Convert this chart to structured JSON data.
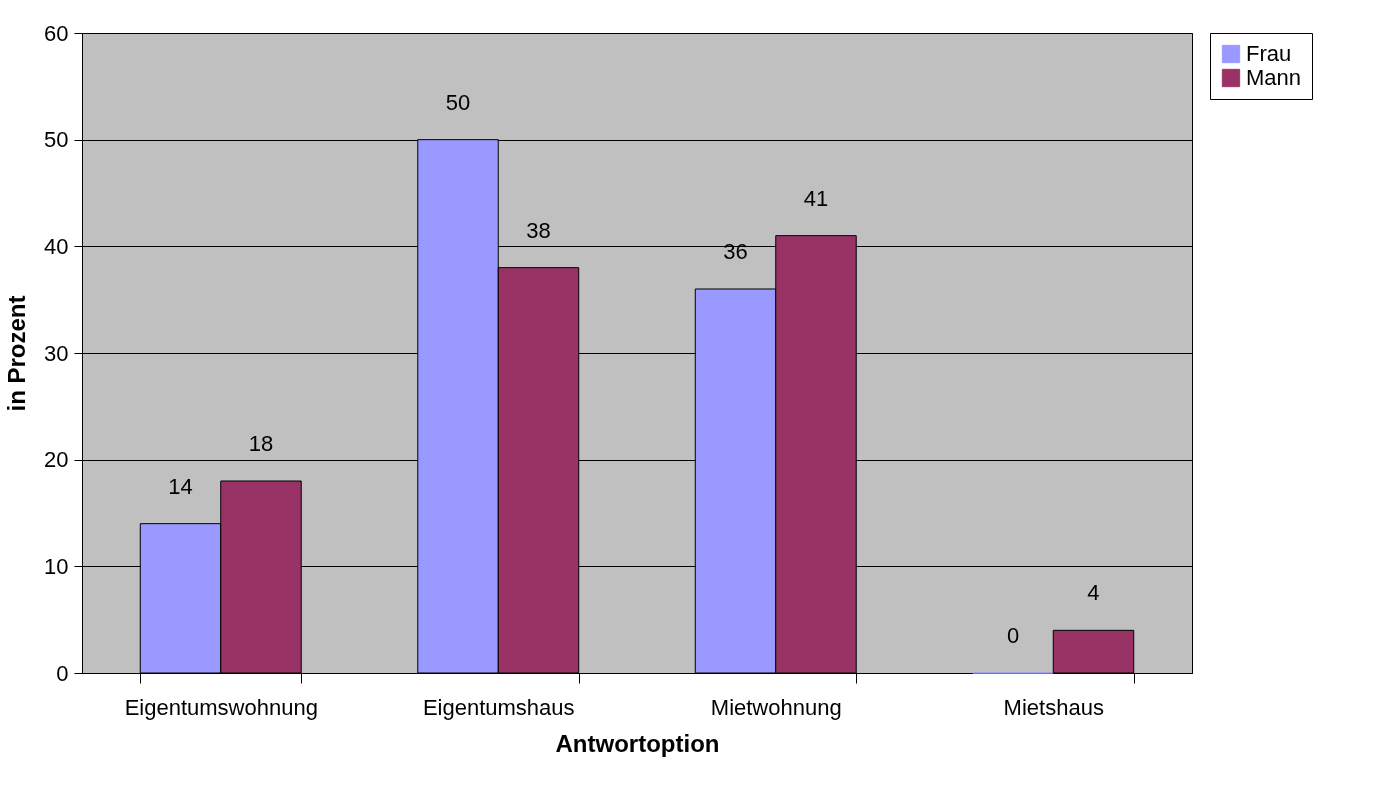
{
  "chart_data": {
    "type": "bar",
    "xlabel": "Antwortoption",
    "ylabel": "in Prozent",
    "categories": [
      "Eigentumswohnung",
      "Eigentumshaus",
      "Mietwohnung",
      "Mietshaus"
    ],
    "series": [
      {
        "name": "Frau",
        "color": "#9999ff",
        "values": [
          14,
          50,
          36,
          0
        ]
      },
      {
        "name": "Mann",
        "color": "#993366",
        "values": [
          18,
          38,
          41,
          4
        ]
      }
    ],
    "ylim": [
      0,
      60
    ],
    "yticks": [
      0,
      10,
      20,
      30,
      40,
      50,
      60
    ],
    "grid": "y",
    "legend": "right",
    "data_labels": true
  }
}
